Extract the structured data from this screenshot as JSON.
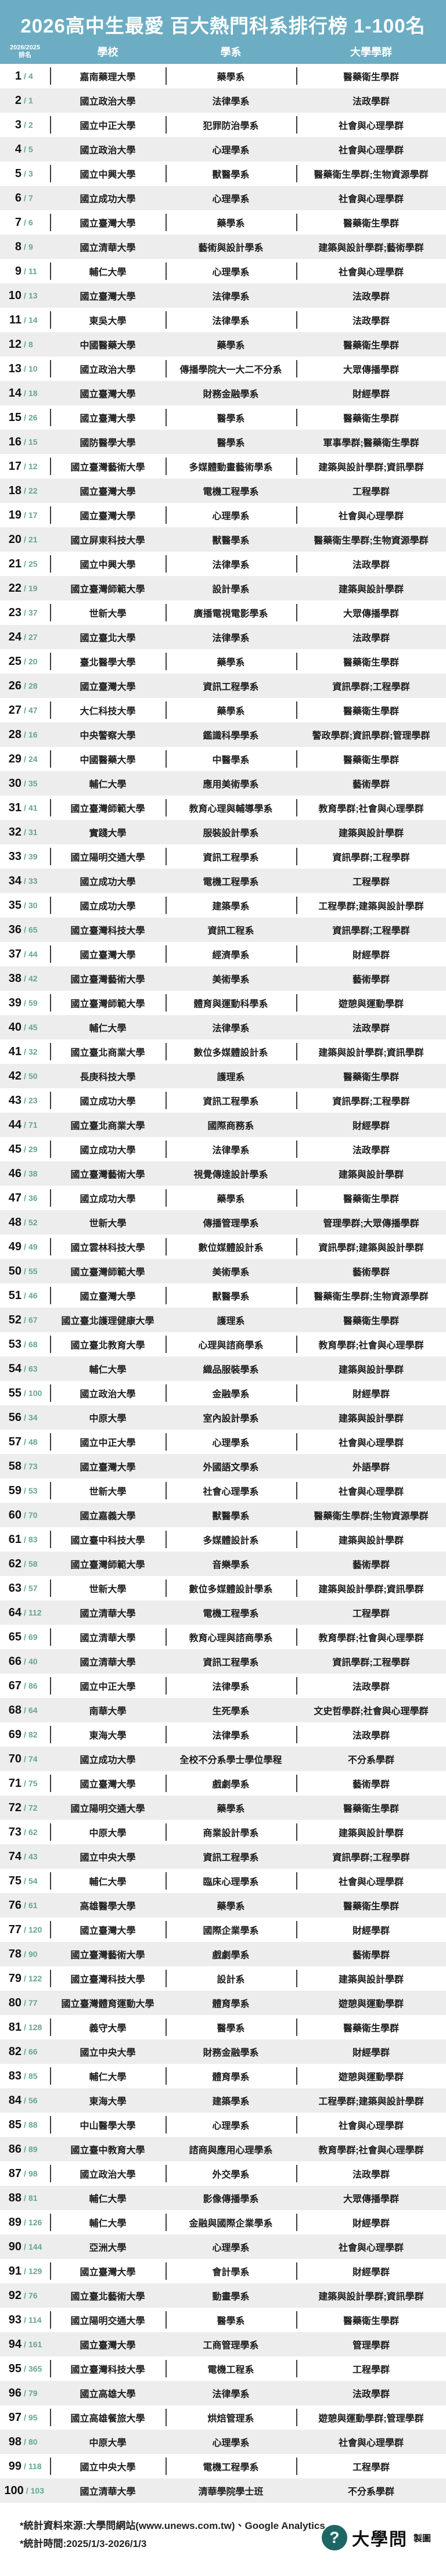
{
  "header": {
    "title": "2026高中生最愛 百大熱門科系排行榜 1-100名",
    "columns": {
      "rank_line1": "2026/2025",
      "rank_line2": "排名",
      "school": "學校",
      "dept": "學系",
      "group": "大學學群"
    }
  },
  "labels": {
    "rank_separator": "/"
  },
  "colors": {
    "header_bg": "#6CADC3",
    "accent_green": "#62A88E",
    "row_alt_gray": "#EDEDED",
    "logo_teal": "#1E6663"
  },
  "chart_data": {
    "type": "table",
    "title": "2026高中生最愛 百大熱門科系排行榜 1-100名",
    "columns": [
      "2026/2025排名",
      "學校",
      "學系",
      "大學學群"
    ],
    "rows": [
      {
        "rank": 1,
        "prev": 4,
        "school": "嘉南藥理大學",
        "dept": "藥學系",
        "group": "醫藥衛生學群"
      },
      {
        "rank": 2,
        "prev": 1,
        "school": "國立政治大學",
        "dept": "法律學系",
        "group": "法政學群"
      },
      {
        "rank": 3,
        "prev": 2,
        "school": "國立中正大學",
        "dept": "犯罪防治學系",
        "group": "社會與心理學群"
      },
      {
        "rank": 4,
        "prev": 5,
        "school": "國立政治大學",
        "dept": "心理學系",
        "group": "社會與心理學群"
      },
      {
        "rank": 5,
        "prev": 3,
        "school": "國立中興大學",
        "dept": "獸醫學系",
        "group": "醫藥衛生學群;生物資源學群"
      },
      {
        "rank": 6,
        "prev": 7,
        "school": "國立成功大學",
        "dept": "心理學系",
        "group": "社會與心理學群"
      },
      {
        "rank": 7,
        "prev": 6,
        "school": "國立臺灣大學",
        "dept": "藥學系",
        "group": "醫藥衛生學群"
      },
      {
        "rank": 8,
        "prev": 9,
        "school": "國立清華大學",
        "dept": "藝術與設計學系",
        "group": "建築與設計學群;藝術學群"
      },
      {
        "rank": 9,
        "prev": 11,
        "school": "輔仁大學",
        "dept": "心理學系",
        "group": "社會與心理學群"
      },
      {
        "rank": 10,
        "prev": 13,
        "school": "國立臺灣大學",
        "dept": "法律學系",
        "group": "法政學群"
      },
      {
        "rank": 11,
        "prev": 14,
        "school": "東吳大學",
        "dept": "法律學系",
        "group": "法政學群"
      },
      {
        "rank": 12,
        "prev": 8,
        "school": "中國醫藥大學",
        "dept": "藥學系",
        "group": "醫藥衛生學群"
      },
      {
        "rank": 13,
        "prev": 10,
        "school": "國立政治大學",
        "dept": "傳播學院大一大二不分系",
        "group": "大眾傳播學群"
      },
      {
        "rank": 14,
        "prev": 18,
        "school": "國立臺灣大學",
        "dept": "財務金融學系",
        "group": "財經學群"
      },
      {
        "rank": 15,
        "prev": 26,
        "school": "國立臺灣大學",
        "dept": "醫學系",
        "group": "醫藥衛生學群"
      },
      {
        "rank": 16,
        "prev": 15,
        "school": "國防醫學大學",
        "dept": "醫學系",
        "group": "軍事學群;醫藥衛生學群"
      },
      {
        "rank": 17,
        "prev": 12,
        "school": "國立臺灣藝術大學",
        "dept": "多媒體動畫藝術學系",
        "group": "建築與設計學群;資訊學群"
      },
      {
        "rank": 18,
        "prev": 22,
        "school": "國立臺灣大學",
        "dept": "電機工程學系",
        "group": "工程學群"
      },
      {
        "rank": 19,
        "prev": 17,
        "school": "國立臺灣大學",
        "dept": "心理學系",
        "group": "社會與心理學群"
      },
      {
        "rank": 20,
        "prev": 21,
        "school": "國立屏東科技大學",
        "dept": "獸醫學系",
        "group": "醫藥衛生學群;生物資源學群"
      },
      {
        "rank": 21,
        "prev": 25,
        "school": "國立中興大學",
        "dept": "法律學系",
        "group": "法政學群"
      },
      {
        "rank": 22,
        "prev": 19,
        "school": "國立臺灣師範大學",
        "dept": "設計學系",
        "group": "建築與設計學群"
      },
      {
        "rank": 23,
        "prev": 37,
        "school": "世新大學",
        "dept": "廣播電視電影學系",
        "group": "大眾傳播學群"
      },
      {
        "rank": 24,
        "prev": 27,
        "school": "國立臺北大學",
        "dept": "法律學系",
        "group": "法政學群"
      },
      {
        "rank": 25,
        "prev": 20,
        "school": "臺北醫學大學",
        "dept": "藥學系",
        "group": "醫藥衛生學群"
      },
      {
        "rank": 26,
        "prev": 28,
        "school": "國立臺灣大學",
        "dept": "資訊工程學系",
        "group": "資訊學群;工程學群"
      },
      {
        "rank": 27,
        "prev": 47,
        "school": "大仁科技大學",
        "dept": "藥學系",
        "group": "醫藥衛生學群"
      },
      {
        "rank": 28,
        "prev": 16,
        "school": "中央警察大學",
        "dept": "鑑識科學學系",
        "group": "警政學群;資訊學群;管理學群"
      },
      {
        "rank": 29,
        "prev": 24,
        "school": "中國醫藥大學",
        "dept": "中醫學系",
        "group": "醫藥衛生學群"
      },
      {
        "rank": 30,
        "prev": 35,
        "school": "輔仁大學",
        "dept": "應用美術學系",
        "group": "藝術學群"
      },
      {
        "rank": 31,
        "prev": 41,
        "school": "國立臺灣師範大學",
        "dept": "教育心理與輔導學系",
        "group": "教育學群;社會與心理學群"
      },
      {
        "rank": 32,
        "prev": 31,
        "school": "實踐大學",
        "dept": "服裝設計學系",
        "group": "建築與設計學群"
      },
      {
        "rank": 33,
        "prev": 39,
        "school": "國立陽明交通大學",
        "dept": "資訊工程學系",
        "group": "資訊學群;工程學群"
      },
      {
        "rank": 34,
        "prev": 33,
        "school": "國立成功大學",
        "dept": "電機工程學系",
        "group": "工程學群"
      },
      {
        "rank": 35,
        "prev": 30,
        "school": "國立成功大學",
        "dept": "建築學系",
        "group": "工程學群;建築與設計學群"
      },
      {
        "rank": 36,
        "prev": 65,
        "school": "國立臺灣科技大學",
        "dept": "資訊工程系",
        "group": "資訊學群;工程學群"
      },
      {
        "rank": 37,
        "prev": 44,
        "school": "國立臺灣大學",
        "dept": "經濟學系",
        "group": "財經學群"
      },
      {
        "rank": 38,
        "prev": 42,
        "school": "國立臺灣藝術大學",
        "dept": "美術學系",
        "group": "藝術學群"
      },
      {
        "rank": 39,
        "prev": 59,
        "school": "國立臺灣師範大學",
        "dept": "體育與運動科學系",
        "group": "遊憩與運動學群"
      },
      {
        "rank": 40,
        "prev": 45,
        "school": "輔仁大學",
        "dept": "法律學系",
        "group": "法政學群"
      },
      {
        "rank": 41,
        "prev": 32,
        "school": "國立臺北商業大學",
        "dept": "數位多媒體設計系",
        "group": "建築與設計學群;資訊學群"
      },
      {
        "rank": 42,
        "prev": 50,
        "school": "長庚科技大學",
        "dept": "護理系",
        "group": "醫藥衛生學群"
      },
      {
        "rank": 43,
        "prev": 23,
        "school": "國立成功大學",
        "dept": "資訊工程學系",
        "group": "資訊學群;工程學群"
      },
      {
        "rank": 44,
        "prev": 71,
        "school": "國立臺北商業大學",
        "dept": "國際商務系",
        "group": "財經學群"
      },
      {
        "rank": 45,
        "prev": 29,
        "school": "國立成功大學",
        "dept": "法律學系",
        "group": "法政學群"
      },
      {
        "rank": 46,
        "prev": 38,
        "school": "國立臺灣藝術大學",
        "dept": "視覺傳達設計學系",
        "group": "建築與設計學群"
      },
      {
        "rank": 47,
        "prev": 36,
        "school": "國立成功大學",
        "dept": "藥學系",
        "group": "醫藥衛生學群"
      },
      {
        "rank": 48,
        "prev": 52,
        "school": "世新大學",
        "dept": "傳播管理學系",
        "group": "管理學群;大眾傳播學群"
      },
      {
        "rank": 49,
        "prev": 49,
        "school": "國立雲林科技大學",
        "dept": "數位媒體設計系",
        "group": "資訊學群;建築與設計學群"
      },
      {
        "rank": 50,
        "prev": 55,
        "school": "國立臺灣師範大學",
        "dept": "美術學系",
        "group": "藝術學群"
      },
      {
        "rank": 51,
        "prev": 46,
        "school": "國立臺灣大學",
        "dept": "獸醫學系",
        "group": "醫藥衛生學群;生物資源學群"
      },
      {
        "rank": 52,
        "prev": 67,
        "school": "國立臺北護理健康大學",
        "dept": "護理系",
        "group": "醫藥衛生學群"
      },
      {
        "rank": 53,
        "prev": 68,
        "school": "國立臺北教育大學",
        "dept": "心理與諮商學系",
        "group": "教育學群;社會與心理學群"
      },
      {
        "rank": 54,
        "prev": 63,
        "school": "輔仁大學",
        "dept": "織品服裝學系",
        "group": "建築與設計學群"
      },
      {
        "rank": 55,
        "prev": 100,
        "school": "國立政治大學",
        "dept": "金融學系",
        "group": "財經學群"
      },
      {
        "rank": 56,
        "prev": 34,
        "school": "中原大學",
        "dept": "室內設計學系",
        "group": "建築與設計學群"
      },
      {
        "rank": 57,
        "prev": 48,
        "school": "國立中正大學",
        "dept": "心理學系",
        "group": "社會與心理學群"
      },
      {
        "rank": 58,
        "prev": 73,
        "school": "國立臺灣大學",
        "dept": "外國語文學系",
        "group": "外語學群"
      },
      {
        "rank": 59,
        "prev": 53,
        "school": "世新大學",
        "dept": "社會心理學系",
        "group": "社會與心理學群"
      },
      {
        "rank": 60,
        "prev": 70,
        "school": "國立嘉義大學",
        "dept": "獸醫學系",
        "group": "醫藥衛生學群;生物資源學群"
      },
      {
        "rank": 61,
        "prev": 83,
        "school": "國立臺中科技大學",
        "dept": "多媒體設計系",
        "group": "建築與設計學群"
      },
      {
        "rank": 62,
        "prev": 58,
        "school": "國立臺灣師範大學",
        "dept": "音樂學系",
        "group": "藝術學群"
      },
      {
        "rank": 63,
        "prev": 57,
        "school": "世新大學",
        "dept": "數位多媒體設計學系",
        "group": "建築與設計學群;資訊學群"
      },
      {
        "rank": 64,
        "prev": 112,
        "school": "國立清華大學",
        "dept": "電機工程學系",
        "group": "工程學群"
      },
      {
        "rank": 65,
        "prev": 69,
        "school": "國立清華大學",
        "dept": "教育心理與諮商學系",
        "group": "教育學群;社會與心理學群"
      },
      {
        "rank": 66,
        "prev": 40,
        "school": "國立清華大學",
        "dept": "資訊工程學系",
        "group": "資訊學群;工程學群"
      },
      {
        "rank": 67,
        "prev": 86,
        "school": "國立中正大學",
        "dept": "法律學系",
        "group": "法政學群"
      },
      {
        "rank": 68,
        "prev": 64,
        "school": "南華大學",
        "dept": "生死學系",
        "group": "文史哲學群;社會與心理學群"
      },
      {
        "rank": 69,
        "prev": 82,
        "school": "東海大學",
        "dept": "法律學系",
        "group": "法政學群"
      },
      {
        "rank": 70,
        "prev": 74,
        "school": "國立成功大學",
        "dept": "全校不分系學士學位學程",
        "group": "不分系學群"
      },
      {
        "rank": 71,
        "prev": 75,
        "school": "國立臺灣大學",
        "dept": "戲劇學系",
        "group": "藝術學群"
      },
      {
        "rank": 72,
        "prev": 72,
        "school": "國立陽明交通大學",
        "dept": "藥學系",
        "group": "醫藥衛生學群"
      },
      {
        "rank": 73,
        "prev": 62,
        "school": "中原大學",
        "dept": "商業設計學系",
        "group": "建築與設計學群"
      },
      {
        "rank": 74,
        "prev": 43,
        "school": "國立中央大學",
        "dept": "資訊工程學系",
        "group": "資訊學群;工程學群"
      },
      {
        "rank": 75,
        "prev": 54,
        "school": "輔仁大學",
        "dept": "臨床心理學系",
        "group": "社會與心理學群"
      },
      {
        "rank": 76,
        "prev": 61,
        "school": "高雄醫學大學",
        "dept": "藥學系",
        "group": "醫藥衛生學群"
      },
      {
        "rank": 77,
        "prev": 120,
        "school": "國立臺灣大學",
        "dept": "國際企業學系",
        "group": "財經學群"
      },
      {
        "rank": 78,
        "prev": 90,
        "school": "國立臺灣藝術大學",
        "dept": "戲劇學系",
        "group": "藝術學群"
      },
      {
        "rank": 79,
        "prev": 122,
        "school": "國立臺灣科技大學",
        "dept": "設計系",
        "group": "建築與設計學群"
      },
      {
        "rank": 80,
        "prev": 77,
        "school": "國立臺灣體育運動大學",
        "dept": "體育學系",
        "group": "遊憩與運動學群"
      },
      {
        "rank": 81,
        "prev": 128,
        "school": "義守大學",
        "dept": "醫學系",
        "group": "醫藥衛生學群"
      },
      {
        "rank": 82,
        "prev": 66,
        "school": "國立中央大學",
        "dept": "財務金融學系",
        "group": "財經學群"
      },
      {
        "rank": 83,
        "prev": 85,
        "school": "輔仁大學",
        "dept": "體育學系",
        "group": "遊憩與運動學群"
      },
      {
        "rank": 84,
        "prev": 56,
        "school": "東海大學",
        "dept": "建築學系",
        "group": "工程學群;建築與設計學群"
      },
      {
        "rank": 85,
        "prev": 88,
        "school": "中山醫學大學",
        "dept": "心理學系",
        "group": "社會與心理學群"
      },
      {
        "rank": 86,
        "prev": 89,
        "school": "國立臺中教育大學",
        "dept": "諮商與應用心理學系",
        "group": "教育學群;社會與心理學群"
      },
      {
        "rank": 87,
        "prev": 98,
        "school": "國立政治大學",
        "dept": "外交學系",
        "group": "法政學群"
      },
      {
        "rank": 88,
        "prev": 81,
        "school": "輔仁大學",
        "dept": "影像傳播學系",
        "group": "大眾傳播學群"
      },
      {
        "rank": 89,
        "prev": 126,
        "school": "輔仁大學",
        "dept": "金融與國際企業學系",
        "group": "財經學群"
      },
      {
        "rank": 90,
        "prev": 144,
        "school": "亞洲大學",
        "dept": "心理學系",
        "group": "社會與心理學群"
      },
      {
        "rank": 91,
        "prev": 129,
        "school": "國立臺灣大學",
        "dept": "會計學系",
        "group": "財經學群"
      },
      {
        "rank": 92,
        "prev": 76,
        "school": "國立臺北藝術大學",
        "dept": "動畫學系",
        "group": "建築與設計學群;資訊學群"
      },
      {
        "rank": 93,
        "prev": 114,
        "school": "國立陽明交通大學",
        "dept": "醫學系",
        "group": "醫藥衛生學群"
      },
      {
        "rank": 94,
        "prev": 161,
        "school": "國立臺灣大學",
        "dept": "工商管理學系",
        "group": "管理學群"
      },
      {
        "rank": 95,
        "prev": 365,
        "school": "國立臺灣科技大學",
        "dept": "電機工程系",
        "group": "工程學群"
      },
      {
        "rank": 96,
        "prev": 79,
        "school": "國立高雄大學",
        "dept": "法律學系",
        "group": "法政學群"
      },
      {
        "rank": 97,
        "prev": 95,
        "school": "國立高雄餐旅大學",
        "dept": "烘焙管理系",
        "group": "遊憩與運動學群;管理學群"
      },
      {
        "rank": 98,
        "prev": 80,
        "school": "中原大學",
        "dept": "心理學系",
        "group": "社會與心理學群"
      },
      {
        "rank": 99,
        "prev": 118,
        "school": "國立中央大學",
        "dept": "電機工程學系",
        "group": "工程學群"
      },
      {
        "rank": 100,
        "prev": 103,
        "school": "國立清華大學",
        "dept": "清華學院學士班",
        "group": "不分系學群"
      }
    ]
  },
  "footer": {
    "source_line": "*統計資料來源:大學問網站(www.unews.com.tw)、Google Analytics",
    "period_line": "*統計時間:2025/1/3-2026/1/3",
    "logo_question_mark": "?",
    "logo_word": "大學問",
    "logo_suffix": "製圖"
  }
}
